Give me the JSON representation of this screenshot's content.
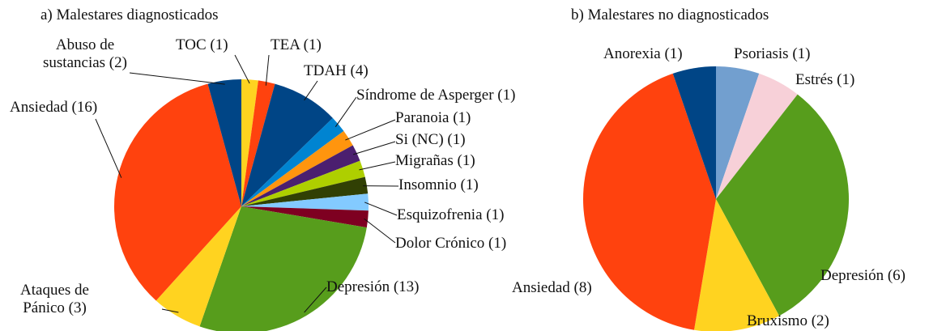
{
  "chart_data": [
    {
      "type": "pie",
      "title": "a) Malestares diagnosticados",
      "value_labels": [
        "TOC (1)",
        "TEA (1)",
        "TDAH (4)",
        "Síndrome de Asperger (1)",
        "Paranoia (1)",
        "Si (NC) (1)",
        "Migrañas (1)",
        "Insomnio (1)",
        "Esquizofrenia (1)",
        "Dolor Crónico (1)",
        "Depresión (13)",
        "Ataques de Pánico (3)",
        "Ansiedad (16)",
        "Abuso de sustancias (2)"
      ],
      "values": [
        1,
        1,
        4,
        1,
        1,
        1,
        1,
        1,
        1,
        1,
        13,
        3,
        16,
        2
      ],
      "colors": [
        "#ffd320",
        "#ff420e",
        "#004586",
        "#0084d1",
        "#ff950e",
        "#4b1f6f",
        "#aecf00",
        "#314004",
        "#83caff",
        "#7e0021",
        "#579d1c",
        "#ffd320",
        "#ff420e",
        "#004586"
      ]
    },
    {
      "type": "pie",
      "title": "b) Malestares no diagnosticados",
      "value_labels": [
        "Psoriasis (1)",
        "Estrés (1)",
        "Depresión (6)",
        "Bruxismo (2)",
        "Ansiedad (8)",
        "Anorexia (1)"
      ],
      "values": [
        1,
        1,
        6,
        2,
        8,
        1
      ],
      "colors": [
        "#729fcf",
        "#f7d0d8",
        "#579d1c",
        "#ffd320",
        "#ff420e",
        "#004586"
      ]
    }
  ]
}
